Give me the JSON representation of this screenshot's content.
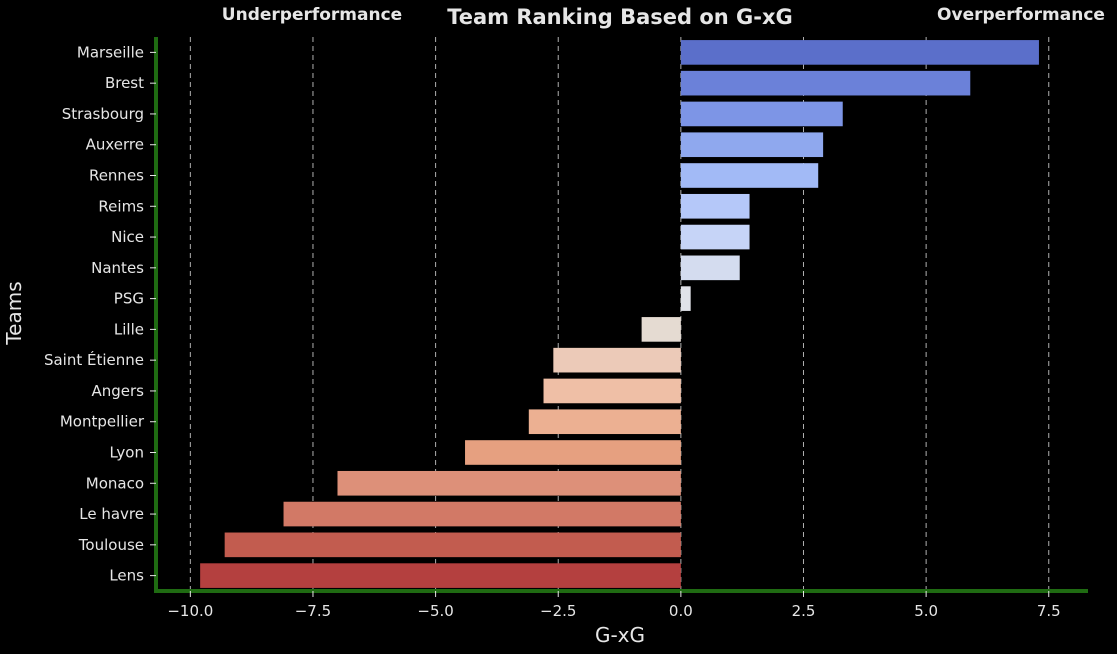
{
  "chart_data": {
    "type": "bar",
    "orientation": "horizontal",
    "title": "Team Ranking Based on G-xG",
    "title_color": "#2a7a12",
    "xlabel": "G-xG",
    "ylabel": "Teams",
    "xlim": [
      -10.7,
      8.3
    ],
    "xticks": [
      -10.0,
      -7.5,
      -5.0,
      -2.5,
      0.0,
      2.5,
      5.0,
      7.5
    ],
    "xtick_labels": [
      "−10.0",
      "−7.5",
      "−5.0",
      "−2.5",
      "0.0",
      "2.5",
      "5.0",
      "7.5"
    ],
    "grid": "x-dashed",
    "annotations": {
      "left": {
        "text": "Underperformance",
        "color": "#e05454"
      },
      "right": {
        "text": "Overperformance",
        "color": "#a9cfe6"
      }
    },
    "categories": [
      "Marseille",
      "Brest",
      "Strasbourg",
      "Auxerre",
      "Rennes",
      "Reims",
      "Nice",
      "Nantes",
      "PSG",
      "Lille",
      "Saint Étienne",
      "Angers",
      "Montpellier",
      "Lyon",
      "Monaco",
      "Le havre",
      "Toulouse",
      "Lens"
    ],
    "values": [
      7.3,
      5.9,
      3.3,
      2.9,
      2.8,
      1.4,
      1.4,
      1.2,
      0.2,
      -0.8,
      -2.6,
      -2.8,
      -3.1,
      -4.4,
      -7.0,
      -8.1,
      -9.3,
      -9.8
    ],
    "colors": [
      "#5b6fca",
      "#6b81d9",
      "#7d95e6",
      "#8fa8ee",
      "#a2baf6",
      "#b5c8f9",
      "#c6d4f7",
      "#d4dcef",
      "#e0e2e8",
      "#e5dbd2",
      "#eccab8",
      "#efbfa6",
      "#ecb092",
      "#e6a080",
      "#dd9079",
      "#d27966",
      "#c25c4f",
      "#b4403f"
    ]
  }
}
